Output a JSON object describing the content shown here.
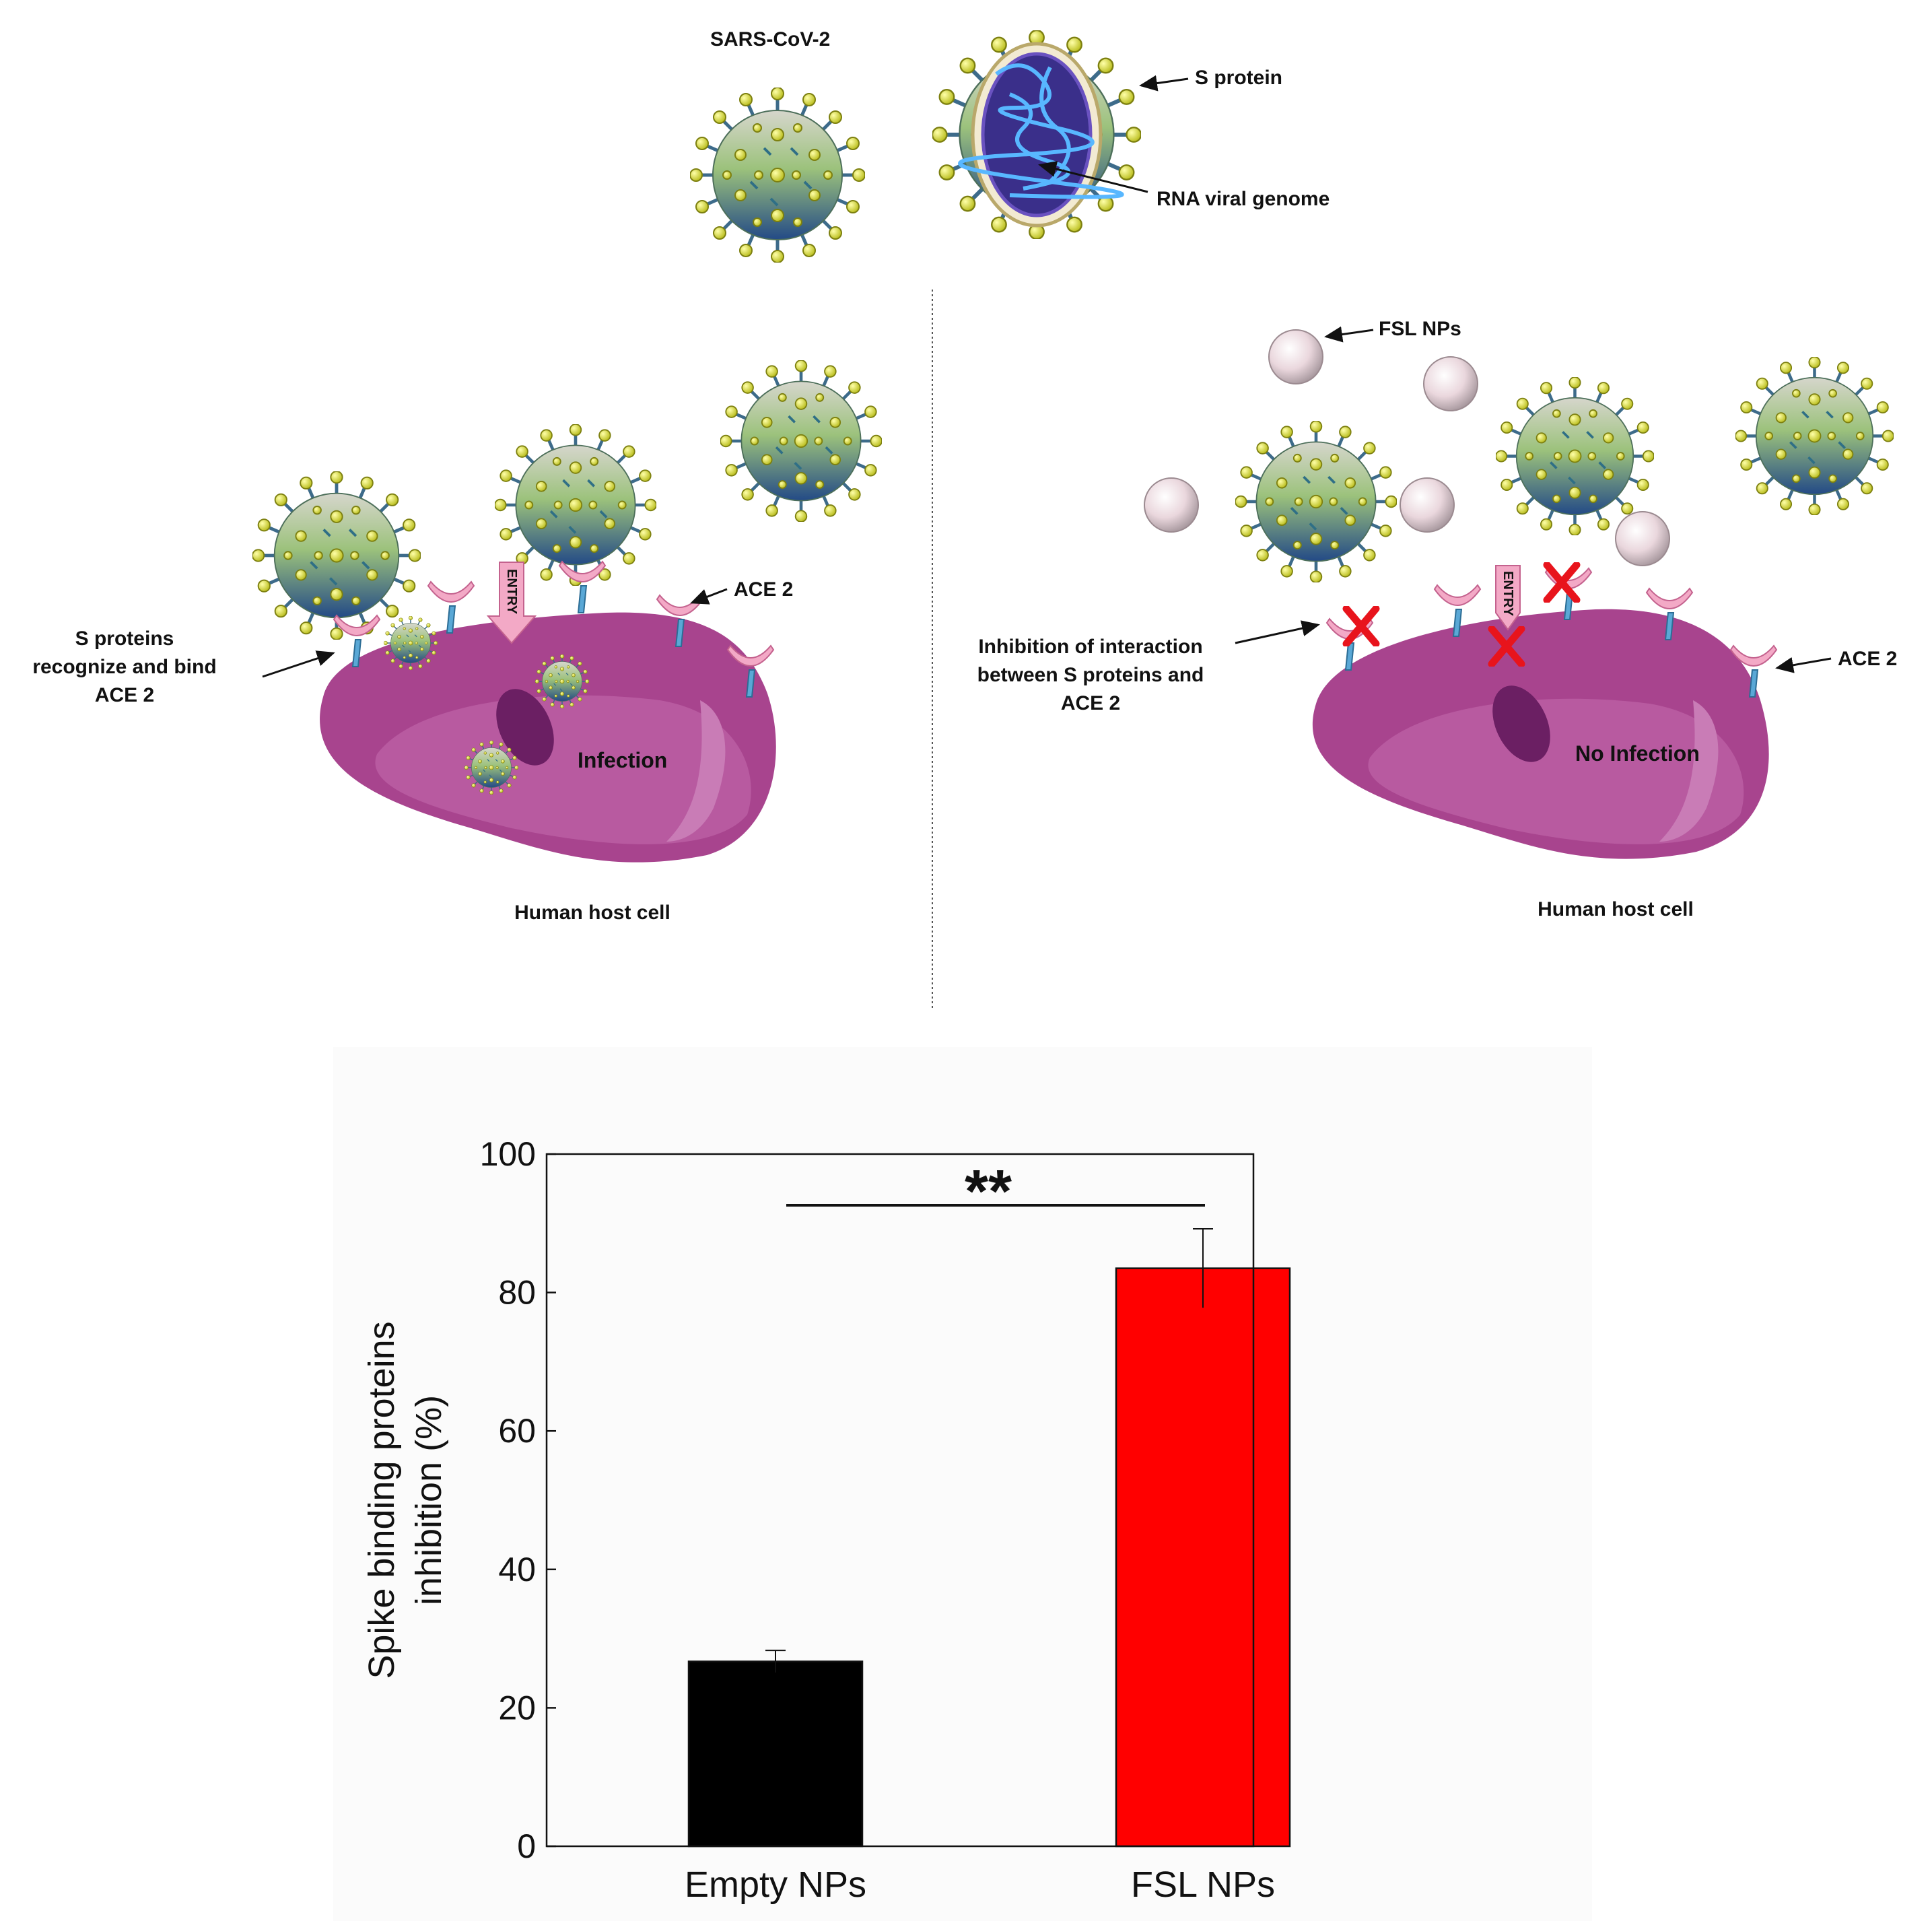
{
  "colors": {
    "cell_body": "#a8448e",
    "cell_light": "#b85aa0",
    "nucleus": "#6b1f63",
    "virus_top": "#c9c9c0",
    "virus_mid": "#9cc27c",
    "virus_bottom": "#234a86",
    "spike": "#e2e64a",
    "receptor_cup": "#f3a9c6",
    "receptor_stem": "#5aa8d6",
    "nanoparticle": "#e9d6dc",
    "inhibit_x": "#e8141c",
    "bar_empty": "#000000",
    "bar_fsl": "#ff0000",
    "panel_bg": "#fbfbfb"
  },
  "labels": {
    "virus_name": "SARS-CoV-2",
    "s_protein": "S protein",
    "rna_genome": "RNA viral genome",
    "bind_line1": "S proteins",
    "bind_line2": "recognize and bind",
    "bind_line3": "ACE 2",
    "ace2_left": "ACE 2",
    "entry": "ENTRY",
    "infection": "Infection",
    "host_left": "Human host cell",
    "fsl_nps": "FSL NPs",
    "inhib_line1": "Inhibition of interaction",
    "inhib_line2": "between S proteins and",
    "inhib_line3": "ACE 2",
    "ace2_right": "ACE 2",
    "entry_right": "ENTRY",
    "no_infection": "No Infection",
    "host_right": "Human host cell"
  },
  "chart_data": {
    "type": "bar",
    "categories": [
      "Empty NPs",
      "FSL NPs"
    ],
    "values": [
      26.7,
      83.5
    ],
    "errors": [
      1.6,
      5.7
    ],
    "ylabel_line1": "Spike binding proteins",
    "ylabel_line2": "inhibition (%)",
    "ylim": [
      0,
      100
    ],
    "yticks": [
      "0",
      "20",
      "40",
      "60",
      "80",
      "100"
    ],
    "significance": "**"
  }
}
